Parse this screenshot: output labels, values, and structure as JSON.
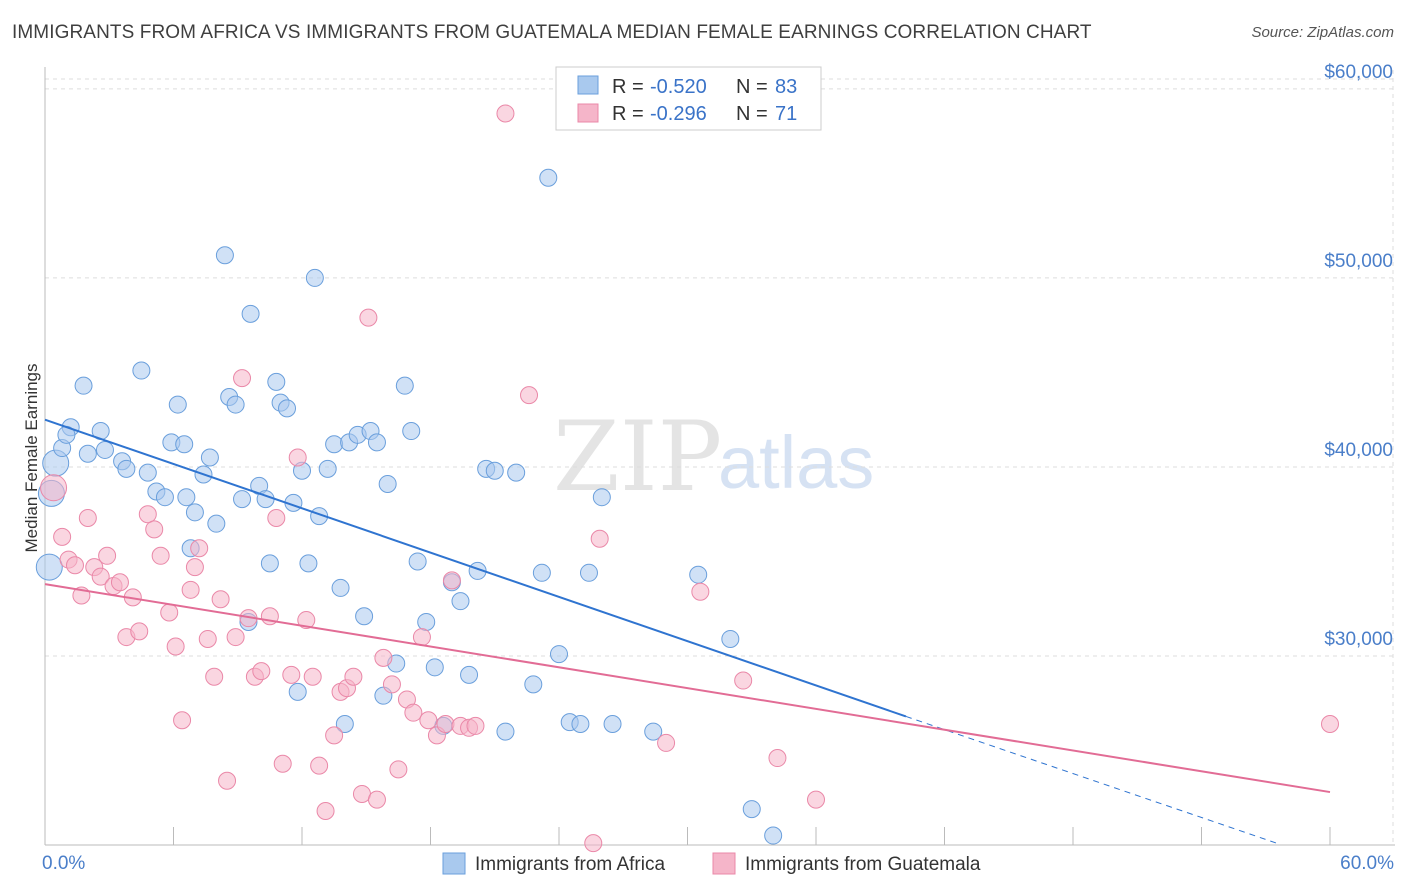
{
  "title": "IMMIGRANTS FROM AFRICA VS IMMIGRANTS FROM GUATEMALA MEDIAN FEMALE EARNINGS CORRELATION CHART",
  "source": "Source: ZipAtlas.com",
  "watermark": {
    "part1": "ZIP",
    "part2": "atlas"
  },
  "legend": {
    "rows": [
      {
        "r_label": "R =",
        "r_value": "-0.520",
        "n_label": "N =",
        "n_value": "83"
      },
      {
        "r_label": "R =",
        "r_value": "-0.296",
        "n_label": "N =",
        "n_value": "71"
      }
    ]
  },
  "bottom_legend": [
    "Immigrants from Africa",
    "Immigrants from Guatemala"
  ],
  "colors": {
    "africa_fill": "#a9c9ee",
    "africa_stroke": "#6a9fdc",
    "africa_line": "#2f74d0",
    "guatemala_fill": "#f5b5c9",
    "guatemala_stroke": "#ea88a8",
    "guatemala_line": "#e26c95",
    "grid": "#dddddd",
    "tick_text": "#4a7ec9"
  },
  "chart_data": {
    "type": "scatter",
    "title": "IMMIGRANTS FROM AFRICA VS IMMIGRANTS FROM GUATEMALA MEDIAN FEMALE EARNINGS CORRELATION CHART",
    "xlabel": "",
    "ylabel": "Median Female Earnings",
    "xlim": [
      0,
      60
    ],
    "ylim": [
      20000,
      61000
    ],
    "x_tick_labels": [
      "0.0%",
      "60.0%"
    ],
    "x_tick_values": [
      0,
      60
    ],
    "y_tick_labels": [
      "$30,000",
      "$40,000",
      "$50,000",
      "$60,000"
    ],
    "y_tick_values": [
      30000,
      40000,
      50000,
      60000
    ],
    "grid": true,
    "legend_position": "top-center",
    "series": [
      {
        "name": "Immigrants from Africa",
        "r": -0.52,
        "n": 83,
        "trend": {
          "x0": 0,
          "y0": 42500,
          "x1": 40.2,
          "y1": 26800,
          "dash_to_x": 57.5,
          "dash_to_y": 20100
        },
        "points": [
          [
            0.2,
            34700
          ],
          [
            0.3,
            38600
          ],
          [
            0.5,
            40200
          ],
          [
            0.8,
            41000
          ],
          [
            1.2,
            42100
          ],
          [
            1.8,
            44300
          ],
          [
            2.6,
            41900
          ],
          [
            1.0,
            41700
          ],
          [
            2.0,
            40700
          ],
          [
            2.8,
            40900
          ],
          [
            3.6,
            40300
          ],
          [
            3.8,
            39900
          ],
          [
            4.5,
            45100
          ],
          [
            4.8,
            39700
          ],
          [
            5.2,
            38700
          ],
          [
            5.6,
            38400
          ],
          [
            5.9,
            41300
          ],
          [
            6.2,
            43300
          ],
          [
            6.5,
            41200
          ],
          [
            6.6,
            38400
          ],
          [
            7.0,
            37600
          ],
          [
            7.4,
            39600
          ],
          [
            7.7,
            40500
          ],
          [
            8.0,
            37000
          ],
          [
            8.4,
            51200
          ],
          [
            8.6,
            43700
          ],
          [
            8.9,
            43300
          ],
          [
            9.2,
            38300
          ],
          [
            9.6,
            48100
          ],
          [
            10.0,
            39000
          ],
          [
            10.3,
            38300
          ],
          [
            10.5,
            34900
          ],
          [
            10.8,
            44500
          ],
          [
            11.0,
            43400
          ],
          [
            11.3,
            43100
          ],
          [
            11.6,
            38100
          ],
          [
            12.0,
            39800
          ],
          [
            12.3,
            34900
          ],
          [
            12.6,
            50000
          ],
          [
            12.8,
            37400
          ],
          [
            13.2,
            39900
          ],
          [
            13.5,
            41200
          ],
          [
            13.8,
            33600
          ],
          [
            14.2,
            41300
          ],
          [
            14.6,
            41700
          ],
          [
            14.9,
            32100
          ],
          [
            15.2,
            41900
          ],
          [
            15.5,
            41300
          ],
          [
            16.0,
            39100
          ],
          [
            16.4,
            29600
          ],
          [
            16.8,
            44300
          ],
          [
            17.1,
            41900
          ],
          [
            17.4,
            35000
          ],
          [
            17.8,
            31800
          ],
          [
            18.2,
            29400
          ],
          [
            18.6,
            26300
          ],
          [
            19.0,
            33900
          ],
          [
            19.4,
            32900
          ],
          [
            19.8,
            29000
          ],
          [
            20.2,
            34500
          ],
          [
            20.6,
            39900
          ],
          [
            21.0,
            39800
          ],
          [
            21.5,
            26000
          ],
          [
            22.0,
            39700
          ],
          [
            22.8,
            28500
          ],
          [
            23.2,
            34400
          ],
          [
            23.5,
            55300
          ],
          [
            24.0,
            30100
          ],
          [
            24.5,
            26500
          ],
          [
            25.0,
            26400
          ],
          [
            25.4,
            34400
          ],
          [
            26.0,
            38400
          ],
          [
            26.5,
            26400
          ],
          [
            28.4,
            26000
          ],
          [
            30.5,
            34300
          ],
          [
            32.0,
            30900
          ],
          [
            33.0,
            21900
          ],
          [
            34.0,
            20500
          ],
          [
            6.8,
            35700
          ],
          [
            9.5,
            31800
          ],
          [
            11.8,
            28100
          ],
          [
            14.0,
            26400
          ],
          [
            15.8,
            27900
          ]
        ]
      },
      {
        "name": "Immigrants from Guatemala",
        "r": -0.296,
        "n": 71,
        "trend": {
          "x0": 0,
          "y0": 33800,
          "x1": 60,
          "y1": 22800
        },
        "points": [
          [
            0.4,
            38900
          ],
          [
            0.8,
            36300
          ],
          [
            1.1,
            35100
          ],
          [
            1.4,
            34800
          ],
          [
            1.7,
            33200
          ],
          [
            2.0,
            37300
          ],
          [
            2.3,
            34700
          ],
          [
            2.6,
            34200
          ],
          [
            2.9,
            35300
          ],
          [
            3.2,
            33700
          ],
          [
            3.5,
            33900
          ],
          [
            3.8,
            31000
          ],
          [
            4.1,
            33100
          ],
          [
            4.4,
            31300
          ],
          [
            4.8,
            37500
          ],
          [
            5.1,
            36700
          ],
          [
            5.4,
            35300
          ],
          [
            5.8,
            32300
          ],
          [
            6.1,
            30500
          ],
          [
            6.4,
            26600
          ],
          [
            6.8,
            33500
          ],
          [
            7.2,
            35700
          ],
          [
            7.6,
            30900
          ],
          [
            7.9,
            28900
          ],
          [
            8.2,
            33000
          ],
          [
            8.5,
            23400
          ],
          [
            8.9,
            31000
          ],
          [
            9.2,
            44700
          ],
          [
            9.5,
            32000
          ],
          [
            9.8,
            28900
          ],
          [
            10.1,
            29200
          ],
          [
            10.5,
            32100
          ],
          [
            10.8,
            37300
          ],
          [
            11.1,
            24300
          ],
          [
            11.5,
            29000
          ],
          [
            11.8,
            40500
          ],
          [
            12.2,
            31900
          ],
          [
            12.5,
            28900
          ],
          [
            12.8,
            24200
          ],
          [
            13.1,
            21800
          ],
          [
            13.5,
            25800
          ],
          [
            13.8,
            28100
          ],
          [
            14.1,
            28300
          ],
          [
            14.4,
            28900
          ],
          [
            14.8,
            22700
          ],
          [
            15.1,
            47900
          ],
          [
            15.5,
            22400
          ],
          [
            15.8,
            29900
          ],
          [
            16.2,
            28500
          ],
          [
            16.5,
            24000
          ],
          [
            16.9,
            27700
          ],
          [
            17.2,
            27000
          ],
          [
            17.6,
            31000
          ],
          [
            17.9,
            26600
          ],
          [
            18.3,
            25800
          ],
          [
            18.7,
            26400
          ],
          [
            19.0,
            34000
          ],
          [
            19.4,
            26300
          ],
          [
            19.8,
            26200
          ],
          [
            20.1,
            26300
          ],
          [
            21.5,
            58700
          ],
          [
            22.6,
            43800
          ],
          [
            25.6,
            20100
          ],
          [
            25.9,
            36200
          ],
          [
            29.0,
            25400
          ],
          [
            30.6,
            33400
          ],
          [
            32.6,
            28700
          ],
          [
            34.2,
            24600
          ],
          [
            36.0,
            22400
          ],
          [
            60.0,
            26400
          ],
          [
            7.0,
            34700
          ]
        ]
      }
    ]
  }
}
